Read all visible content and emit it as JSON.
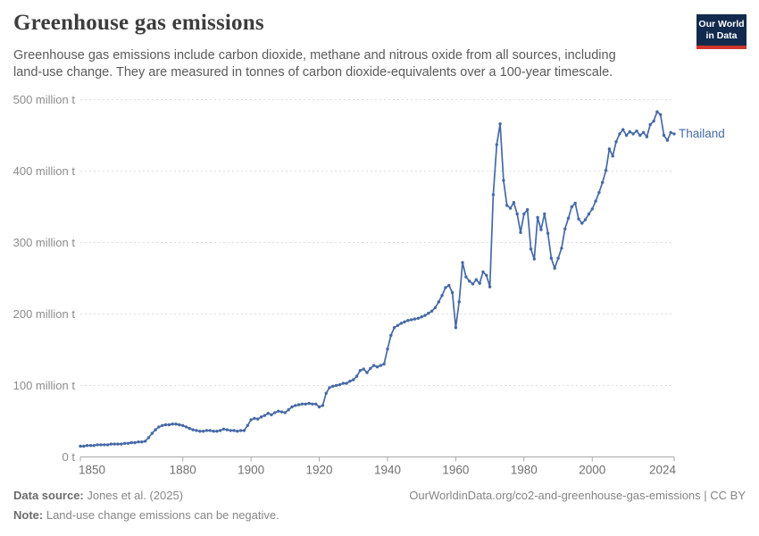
{
  "header": {
    "title": "Greenhouse gas emissions",
    "subtitle_line1": "Greenhouse gas emissions include carbon dioxide, methane and nitrous oxide from all sources, including",
    "subtitle_line2": "land-use change. They are measured in tonnes of carbon dioxide-equivalents over a 100-year timescale.",
    "logo": {
      "line1": "Our World",
      "line2": "in Data"
    }
  },
  "chart_data": {
    "type": "line",
    "title": "Greenhouse gas emissions",
    "unit": "tonnes of CO2-equivalents",
    "entity": "Thailand",
    "year_start": 1850,
    "year_end": 2024,
    "values": [
      15,
      15,
      16,
      16,
      16,
      17,
      17,
      17,
      17,
      18,
      18,
      18,
      18,
      19,
      19,
      20,
      20,
      21,
      21,
      22,
      27,
      33,
      38,
      42,
      44,
      45,
      45,
      46,
      46,
      45,
      44,
      42,
      40,
      38,
      37,
      36,
      36,
      37,
      37,
      36,
      36,
      37,
      39,
      38,
      37,
      37,
      36,
      37,
      37,
      44,
      52,
      54,
      53,
      56,
      58,
      61,
      59,
      62,
      64,
      63,
      62,
      66,
      70,
      72,
      73,
      74,
      74,
      75,
      74,
      74,
      70,
      72,
      89,
      97,
      99,
      100,
      101,
      103,
      103,
      106,
      108,
      113,
      121,
      123,
      118,
      124,
      128,
      126,
      128,
      130,
      151,
      170,
      181,
      184,
      187,
      189,
      191,
      192,
      193,
      194,
      196,
      198,
      201,
      204,
      209,
      217,
      226,
      237,
      240,
      230,
      181,
      217,
      272,
      252,
      246,
      242,
      248,
      243,
      259,
      254,
      238,
      367,
      437,
      466,
      387,
      352,
      348,
      356,
      340,
      314,
      340,
      346,
      291,
      277,
      335,
      318,
      340,
      313,
      278,
      264,
      278,
      292,
      319,
      334,
      350,
      355,
      333,
      327,
      332,
      340,
      347,
      358,
      370,
      384,
      401,
      431,
      421,
      441,
      452,
      458,
      450,
      455,
      452,
      456,
      450,
      454,
      448,
      465,
      470,
      483,
      479,
      450,
      443,
      454,
      452
    ],
    "series": [
      {
        "name": "Thailand",
        "color": "#4669a5"
      }
    ],
    "ylim": [
      0,
      500
    ],
    "yticks": [
      0,
      100,
      200,
      300,
      400,
      500
    ],
    "ytick_labels": [
      "0 t",
      "100 million t",
      "200 million t",
      "300 million t",
      "400 million t",
      "500 million t"
    ],
    "xticks": [
      1850,
      1880,
      1900,
      1920,
      1940,
      1960,
      1980,
      2000,
      2024
    ],
    "grid": "horizontal-dashed",
    "legend_position": "line-end-label",
    "colors": {
      "line": "#4669a5",
      "grid": "#dedede",
      "axis": "#a8a8a8",
      "ytick_text": "#8c8c8c",
      "xtick_text": "#707070"
    }
  },
  "footer": {
    "source_label": "Data source:",
    "source_value": "Jones et al. (2025)",
    "link": "OurWorldinData.org/co2-and-greenhouse-gas-emissions | CC BY",
    "note_label": "Note:",
    "note_value": "Land-use change emissions can be negative."
  }
}
